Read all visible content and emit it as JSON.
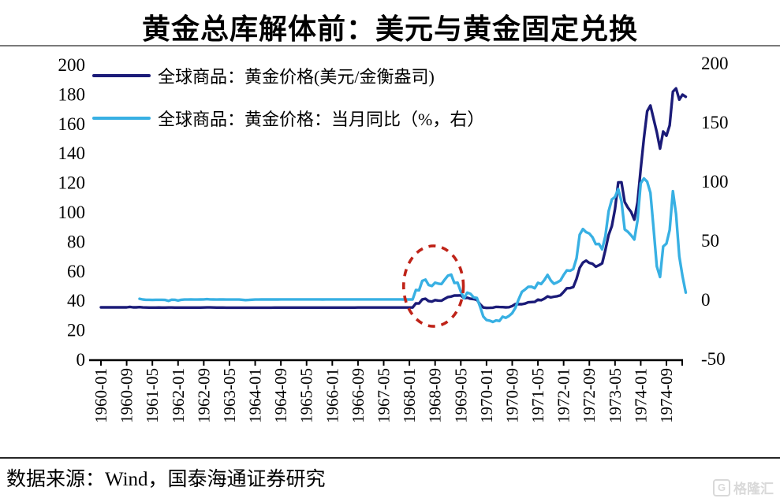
{
  "title": "黄金总库解体前：美元与黄金固定兑换",
  "source_note": "数据来源：Wind，国泰海通证券研究",
  "watermark": {
    "icon": "G",
    "text": "格隆汇"
  },
  "chart_data": {
    "type": "line",
    "title": "黄金总库解体前：美元与黄金固定兑换",
    "start_month": "1960-01",
    "end_month": "1975-03",
    "x_tick_labels": [
      "1960-01",
      "1960-09",
      "1961-05",
      "1962-01",
      "1962-09",
      "1963-05",
      "1964-01",
      "1964-09",
      "1965-05",
      "1966-01",
      "1966-09",
      "1967-05",
      "1968-01",
      "1968-09",
      "1969-05",
      "1970-01",
      "1970-09",
      "1971-05",
      "1972-01",
      "1972-09",
      "1973-05",
      "1974-01",
      "1974-09"
    ],
    "left_axis": {
      "min": 0,
      "max": 200,
      "step": 20,
      "ticks": [
        0,
        20,
        40,
        60,
        80,
        100,
        120,
        140,
        160,
        180,
        200
      ]
    },
    "right_axis": {
      "min": -50,
      "max": 200,
      "step": 50,
      "ticks": [
        -50,
        0,
        50,
        100,
        150,
        200
      ]
    },
    "legend_position": "top-left",
    "series": [
      {
        "name": "全球商品：黄金价格(美元/金衡盎司)",
        "axis": "left",
        "color": "#1b1b78",
        "values": [
          35.27,
          35.27,
          35.27,
          35.27,
          35.27,
          35.27,
          35.27,
          35.27,
          35.27,
          35.6,
          35.29,
          35.27,
          35.47,
          35.26,
          35.17,
          35.15,
          35.13,
          35.15,
          35.17,
          35.15,
          35.13,
          35.17,
          35.21,
          35.16,
          35.16,
          35.14,
          35.12,
          35.12,
          35.12,
          35.13,
          35.14,
          35.15,
          35.18,
          35.26,
          35.24,
          35.17,
          35.14,
          35.13,
          35.11,
          35.1,
          35.1,
          35.1,
          35.1,
          35.1,
          35.09,
          35.09,
          35.09,
          35.09,
          35.1,
          35.1,
          35.1,
          35.1,
          35.1,
          35.1,
          35.11,
          35.11,
          35.11,
          35.12,
          35.12,
          35.12,
          35.12,
          35.12,
          35.12,
          35.12,
          35.12,
          35.13,
          35.13,
          35.13,
          35.13,
          35.13,
          35.14,
          35.14,
          35.14,
          35.14,
          35.15,
          35.15,
          35.15,
          35.16,
          35.16,
          35.16,
          35.17,
          35.17,
          35.18,
          35.18,
          35.19,
          35.19,
          35.19,
          35.19,
          35.19,
          35.19,
          35.19,
          35.19,
          35.19,
          35.19,
          35.19,
          35.2,
          35.2,
          35.2,
          38.0,
          37.9,
          40.7,
          41.1,
          39.5,
          39.2,
          40.2,
          39.9,
          39.8,
          41.1,
          42.3,
          42.6,
          43.3,
          43.3,
          43.4,
          41.5,
          41.8,
          41.1,
          40.9,
          40.4,
          37.4,
          35.2,
          34.94,
          34.99,
          35.09,
          35.62,
          35.5,
          35.44,
          35.32,
          35.38,
          36.19,
          37.52,
          37.44,
          37.44,
          37.87,
          38.74,
          38.87,
          39.01,
          40.52,
          40.1,
          41.16,
          42.73,
          42.02,
          42.5,
          42.86,
          43.48,
          45.75,
          48.26,
          48.33,
          49.03,
          54.62,
          62.09,
          65.67,
          67.03,
          65.47,
          64.86,
          62.91,
          63.91,
          65.14,
          74.2,
          84.37,
          90.5,
          102.0,
          120.1,
          120.17,
          106.76,
          103.01,
          100.08,
          94.82,
          106.72,
          129.19,
          150.2,
          168.42,
          172.24,
          163.27,
          154.1,
          143.0,
          154.58,
          151.77,
          158.78,
          181.66,
          183.85,
          176.27,
          179.63,
          178.17
        ]
      },
      {
        "name": "全球商品：黄金价格：当月同比（%，右）",
        "axis": "right",
        "color": "#38b0e3",
        "values": [
          null,
          null,
          null,
          null,
          null,
          null,
          null,
          null,
          null,
          null,
          null,
          null,
          0.6,
          0.0,
          -0.3,
          -0.3,
          -0.4,
          -0.3,
          -0.3,
          -0.3,
          -0.4,
          -1.2,
          -0.2,
          -0.3,
          -0.9,
          -0.3,
          -0.1,
          -0.1,
          0.0,
          -0.1,
          -0.1,
          0.0,
          0.1,
          0.3,
          0.1,
          0.0,
          -0.1,
          0.0,
          0.0,
          -0.1,
          -0.1,
          -0.1,
          -0.1,
          -0.1,
          -0.3,
          -0.5,
          -0.4,
          -0.2,
          -0.1,
          -0.1,
          0.0,
          0.0,
          0.0,
          0.0,
          0.0,
          0.0,
          0.1,
          0.1,
          0.1,
          0.1,
          0.1,
          0.1,
          0.1,
          0.1,
          0.1,
          0.1,
          0.1,
          0.1,
          0.1,
          0.0,
          0.1,
          0.1,
          0.1,
          0.1,
          0.1,
          0.1,
          0.1,
          0.1,
          0.1,
          0.1,
          0.1,
          0.1,
          0.1,
          0.1,
          0.1,
          0.1,
          0.1,
          0.1,
          0.1,
          0.1,
          0.1,
          0.1,
          0.1,
          0.1,
          0.0,
          0.1,
          0.0,
          0.0,
          8.0,
          7.7,
          15.7,
          16.8,
          12.3,
          11.4,
          14.2,
          13.4,
          13.1,
          16.8,
          20.2,
          21.0,
          13.9,
          14.2,
          6.6,
          1.0,
          5.8,
          4.8,
          1.7,
          1.3,
          -6.0,
          -14.4,
          -17.4,
          -17.9,
          -19.0,
          -17.7,
          -18.2,
          -14.6,
          -15.5,
          -13.9,
          -11.5,
          -7.1,
          0.1,
          6.4,
          8.4,
          10.7,
          10.8,
          9.5,
          14.1,
          13.1,
          16.5,
          20.8,
          16.1,
          13.3,
          14.5,
          16.1,
          20.8,
          24.6,
          24.3,
          25.7,
          34.8,
          54.8,
          59.6,
          56.9,
          55.8,
          52.6,
          46.8,
          47.0,
          42.4,
          53.7,
          74.6,
          84.6,
          86.7,
          93.4,
          83.0,
          59.3,
          57.3,
          54.3,
          50.7,
          67.0,
          98.3,
          102.4,
          99.6,
          90.3,
          60.1,
          28.0,
          19.0,
          44.8,
          47.3,
          58.7,
          91.6,
          72.3,
          36.5,
          19.6,
          5.8
        ]
      }
    ],
    "annotation": {
      "shape": "ellipse",
      "style": "dashed",
      "color": "#bf2318",
      "x_center_month": "1968-08",
      "x_radius_months": 9.3,
      "y_center_right_value": 11.3,
      "y_radius_right_value": 34
    }
  }
}
